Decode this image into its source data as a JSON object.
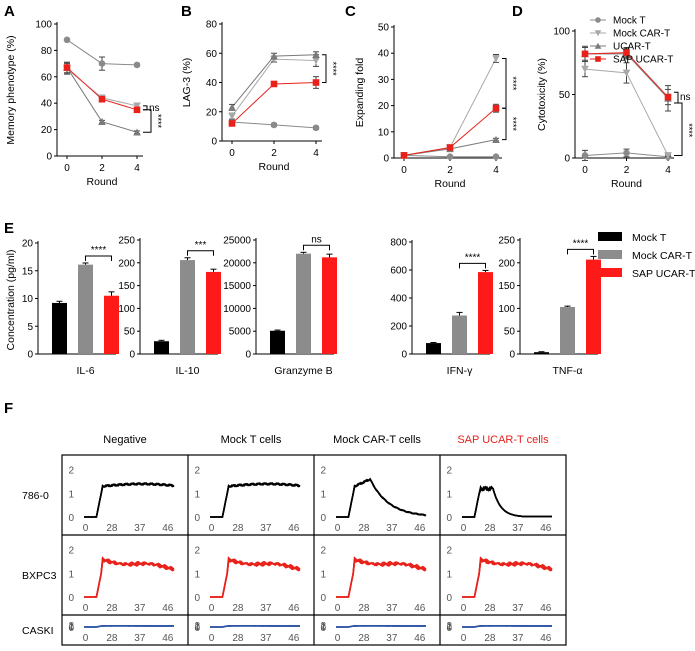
{
  "colors": {
    "mock_t": "#8a8a8a",
    "mock_car_t": "#a8a8a8",
    "ucar_t": "#7a7a7a",
    "sap_ucar_t": "#e8221b",
    "bar_black": "#000000",
    "bar_gray": "#8c8c8c",
    "bar_red": "#ff1a1a",
    "trace_black": "#000000",
    "trace_red": "#e8221b",
    "trace_blue": "#2f55a4"
  },
  "legend_top": {
    "entries": [
      {
        "name": "Mock T",
        "marker": "circle"
      },
      {
        "name": "Mock CAR-T",
        "marker": "triangle-down"
      },
      {
        "name": "UCAR-T",
        "marker": "triangle-up"
      },
      {
        "name": "SAP UCAR-T",
        "marker": "square"
      }
    ]
  },
  "legend_e": {
    "entries": [
      {
        "name": "Mock T"
      },
      {
        "name": "Mock CAR-T"
      },
      {
        "name": "SAP UCAR-T"
      }
    ]
  },
  "chart_data": [
    {
      "panel": "A",
      "type": "line",
      "xlabel": "Round",
      "ylabel": "Memory phenotype (%)",
      "x": [
        0,
        2,
        4
      ],
      "xticks": [
        "0",
        "2",
        "4"
      ],
      "ylim": [
        0,
        100
      ],
      "yticks": [
        "0",
        "20",
        "40",
        "60",
        "80",
        "100"
      ],
      "series": [
        {
          "name": "Mock T",
          "values": [
            88,
            70,
            69
          ],
          "err": [
            0,
            5,
            1
          ]
        },
        {
          "name": "Mock CAR-T",
          "values": [
            66,
            44,
            38
          ],
          "err": [
            4,
            2,
            2
          ]
        },
        {
          "name": "UCAR-T",
          "values": [
            67,
            26,
            18
          ],
          "err": [
            4,
            1,
            1
          ]
        },
        {
          "name": "SAP UCAR-T",
          "values": [
            67,
            43,
            35
          ],
          "err": [
            4,
            2,
            2
          ]
        }
      ],
      "annotations": [
        "ns",
        "****"
      ]
    },
    {
      "panel": "B",
      "type": "line",
      "xlabel": "Round",
      "ylabel": "LAG-3 (%)",
      "x": [
        0,
        2,
        4
      ],
      "xticks": [
        "0",
        "2",
        "4"
      ],
      "ylim": [
        0,
        80
      ],
      "yticks": [
        "0",
        "20",
        "40",
        "60",
        "80"
      ],
      "series": [
        {
          "name": "Mock T",
          "values": [
            13,
            11,
            9
          ],
          "err": [
            1,
            1,
            1
          ]
        },
        {
          "name": "Mock CAR-T",
          "values": [
            17,
            56,
            55
          ],
          "err": [
            2,
            2,
            4
          ]
        },
        {
          "name": "UCAR-T",
          "values": [
            23,
            58,
            59
          ],
          "err": [
            2,
            2,
            2
          ]
        },
        {
          "name": "SAP UCAR-T",
          "values": [
            12,
            39,
            40
          ],
          "err": [
            1,
            1,
            4
          ]
        }
      ],
      "annotations": [
        "****"
      ]
    },
    {
      "panel": "C",
      "type": "line",
      "xlabel": "Round",
      "ylabel": "Expanding fold",
      "x": [
        0,
        2,
        4
      ],
      "xticks": [
        "0",
        "2",
        "4"
      ],
      "ylim": [
        0,
        50
      ],
      "yticks": [
        "0",
        "10",
        "20",
        "30",
        "40",
        "50"
      ],
      "series": [
        {
          "name": "Mock T",
          "values": [
            1,
            0.5,
            0.5
          ],
          "err": [
            0,
            0,
            0
          ]
        },
        {
          "name": "Mock CAR-T",
          "values": [
            1,
            4,
            38
          ],
          "err": [
            0,
            0.5,
            1.5
          ]
        },
        {
          "name": "UCAR-T",
          "values": [
            1,
            3.5,
            7
          ],
          "err": [
            0,
            0.5,
            0.5
          ]
        },
        {
          "name": "SAP UCAR-T",
          "values": [
            1,
            4,
            19
          ],
          "err": [
            0,
            0.5,
            1.5
          ]
        }
      ],
      "annotations": [
        "****",
        "****"
      ]
    },
    {
      "panel": "D",
      "type": "line",
      "xlabel": "Round",
      "ylabel": "Cytotoxicity (%)",
      "x": [
        0,
        2,
        4
      ],
      "xticks": [
        "0",
        "2",
        "4"
      ],
      "ylim": [
        0,
        100
      ],
      "yticks": [
        "0",
        "50",
        "100"
      ],
      "series": [
        {
          "name": "Mock T",
          "values": [
            2,
            4,
            1
          ],
          "err": [
            4,
            3,
            1
          ]
        },
        {
          "name": "Mock CAR-T",
          "values": [
            70,
            67,
            2
          ],
          "err": [
            6,
            8,
            1
          ]
        },
        {
          "name": "UCAR-T",
          "values": [
            82,
            82,
            47
          ],
          "err": [
            6,
            4,
            10
          ]
        },
        {
          "name": "SAP UCAR-T",
          "values": [
            82,
            83,
            48
          ],
          "err": [
            5,
            4,
            6
          ]
        }
      ],
      "annotations": [
        "ns",
        "****"
      ]
    },
    {
      "panel": "E",
      "type": "bar",
      "ylabel": "Concentration (pg/ml)",
      "groups": [
        "Mock T",
        "Mock CAR-T",
        "SAP UCAR-T"
      ],
      "subcharts": [
        {
          "label": "IL-6",
          "ylim": [
            0,
            20
          ],
          "yticks": [
            "0",
            "5",
            "10",
            "15",
            "20"
          ],
          "values": [
            9.2,
            16.1,
            10.5
          ],
          "err": [
            0.3,
            0.3,
            0.7
          ],
          "sig": "****"
        },
        {
          "label": "IL-10",
          "ylim": [
            0,
            250
          ],
          "yticks": [
            "0",
            "50",
            "100",
            "150",
            "200",
            "250"
          ],
          "values": [
            28,
            206,
            180
          ],
          "err": [
            2,
            5,
            6
          ],
          "sig": "***"
        },
        {
          "label": "Granzyme B",
          "ylim": [
            0,
            25000
          ],
          "yticks": [
            "0",
            "5000",
            "10000",
            "15000",
            "20000",
            "25000"
          ],
          "values": [
            5100,
            22000,
            21200
          ],
          "err": [
            150,
            300,
            700
          ],
          "sig": "ns"
        },
        {
          "label": "IFN-γ",
          "ylim": [
            0,
            800
          ],
          "yticks": [
            "0",
            "200",
            "400",
            "600",
            "800"
          ],
          "values": [
            78,
            275,
            585
          ],
          "err": [
            4,
            22,
            12
          ],
          "sig": "****"
        },
        {
          "label": "TNF-α",
          "ylim": [
            0,
            250
          ],
          "yticks": [
            "0",
            "50",
            "100",
            "150",
            "200",
            "250"
          ],
          "values": [
            4,
            103,
            207
          ],
          "err": [
            1,
            2,
            7
          ],
          "sig": "****"
        }
      ]
    },
    {
      "panel": "F",
      "type": "line",
      "xticks": [
        "28",
        "37",
        "46"
      ],
      "yticks": [
        "0",
        "1",
        "2"
      ],
      "x_range": [
        19,
        48
      ],
      "ylim": [
        0,
        2.2
      ],
      "columns": [
        {
          "label": "Negative",
          "highlight": false
        },
        {
          "label": "Mock T cells",
          "highlight": false
        },
        {
          "label": "Mock CAR-T cells",
          "highlight": false
        },
        {
          "label": "SAP UCAR-T cells",
          "highlight": true
        }
      ],
      "rows": [
        {
          "label": "786-0",
          "color_key": "trace_black"
        },
        {
          "label": "BXPC3",
          "color_key": "trace_red"
        },
        {
          "label": "CASKI",
          "color_key": "trace_blue"
        }
      ],
      "traces": [
        [
          "plateau",
          "plateau",
          "peak_decay",
          "spike_decay"
        ],
        [
          "plateau_decline",
          "plateau_decline",
          "plateau_decline",
          "plateau_decline"
        ],
        [
          "plateau_flat",
          "plateau_flat",
          "plateau_flat",
          "plateau_flat"
        ]
      ]
    }
  ],
  "labels": {
    "panel_a": "A",
    "panel_b": "B",
    "panel_c": "C",
    "panel_d": "D",
    "panel_e": "E",
    "panel_f": "F"
  }
}
